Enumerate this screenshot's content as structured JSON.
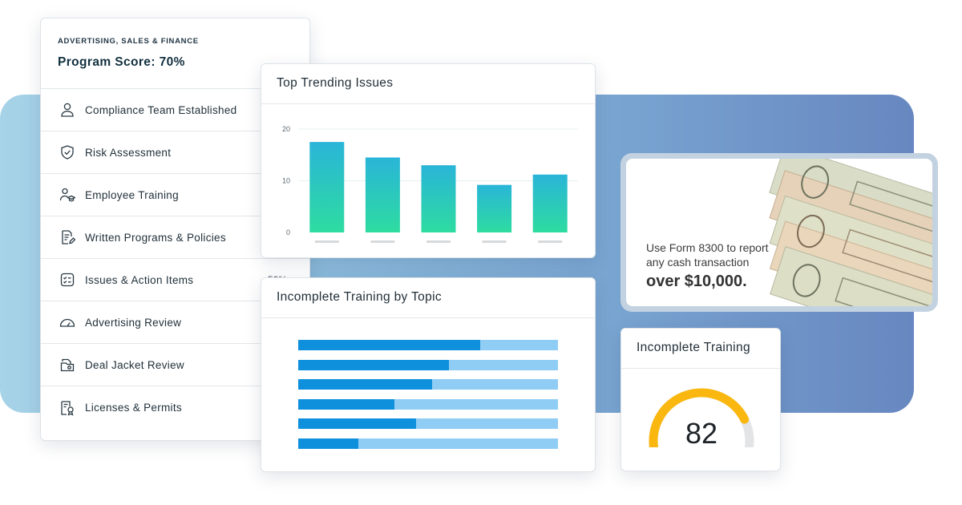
{
  "program": {
    "category": "ADVERTISING, SALES & FINANCE",
    "score_label": "Program Score: 70%",
    "items": [
      {
        "label": "Compliance Team Established",
        "icon": "user-icon",
        "pct": ""
      },
      {
        "label": "Risk Assessment",
        "icon": "shield-check-icon",
        "pct": ""
      },
      {
        "label": "Employee Training",
        "icon": "graduate-icon",
        "pct": ""
      },
      {
        "label": "Written Programs & Policies",
        "icon": "document-edit-icon",
        "pct": ""
      },
      {
        "label": "Issues & Action Items",
        "icon": "checklist-icon",
        "pct": "50%"
      },
      {
        "label": "Advertising Review",
        "icon": "gauge-icon",
        "pct": ""
      },
      {
        "label": "Deal Jacket Review",
        "icon": "folder-icon",
        "pct": ""
      },
      {
        "label": "Licenses & Permits",
        "icon": "certificate-icon",
        "pct": ""
      }
    ]
  },
  "trending": {
    "title": "Top Trending Issues"
  },
  "chart_data": {
    "type": "bar",
    "title": "Top Trending Issues",
    "categories": [
      "",
      "",
      "",
      "",
      ""
    ],
    "values": [
      17.5,
      14.5,
      13,
      9.2,
      11.2
    ],
    "yticks": [
      0,
      10,
      20
    ],
    "ylim": [
      0,
      20
    ],
    "grid": true,
    "bar_gradient": [
      "#29b5d8",
      "#2edca0"
    ]
  },
  "topic": {
    "title": "Incomplete Training by Topic",
    "bars": [
      0.7,
      0.58,
      0.515,
      0.37,
      0.455,
      0.23
    ],
    "fill_color": "#0f90dd",
    "track_color": "#8fcdf5"
  },
  "ad": {
    "line1": "Use Form 8300 to report",
    "line2": "any cash transaction",
    "line3": "over $10,000."
  },
  "gauge": {
    "title": "Incomplete Training",
    "value": "82",
    "fraction": 0.82,
    "color": "#f9b710",
    "track_color": "#e3e4e6"
  },
  "colors": {
    "backdrop_start": "#a7d3e8",
    "backdrop_end": "#6787c0"
  }
}
